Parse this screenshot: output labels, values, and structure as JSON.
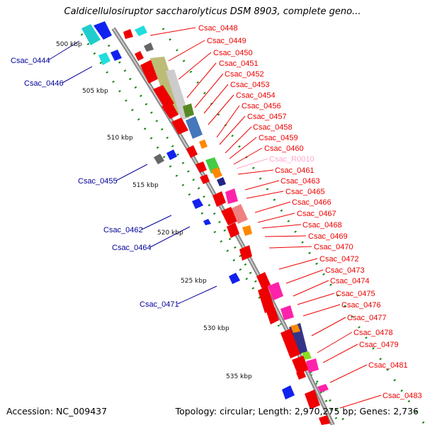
{
  "title": "Caldicellulosiruptor saccharolyticus DSM 8903, complete geno...",
  "footer": {
    "accession_label": "Accession:",
    "accession": "NC_009437",
    "topology_label": "Topology:",
    "topology": "circular",
    "length_label": "Length:",
    "length": "2,970,275 bp",
    "genes_label": "Genes:",
    "genes": "2,736"
  },
  "colors": {
    "forward_label": "#ee0000",
    "reverse_label": "#00009a",
    "rna_label": "#ffaacc",
    "backbone": "#888888",
    "kbp_ticks": "#118811"
  },
  "kbp_ticks": [
    "500 kbp",
    "505 kbp",
    "510 kbp",
    "515 kbp",
    "520 kbp",
    "525 kbp",
    "530 kbp",
    "535 kbp"
  ],
  "forward_labels": [
    "Csac_0448",
    "Csac_0449",
    "Csac_0450",
    "Csac_0451",
    "Csac_0452",
    "Csac_0453",
    "Csac_0454",
    "Csac_0456",
    "Csac_0457",
    "Csac_0458",
    "Csac_0459",
    "Csac_0460",
    "Csac_R0010",
    "Csac_0461",
    "Csac_0463",
    "Csac_0465",
    "Csac_0466",
    "Csac_0467",
    "Csac_0468",
    "Csac_0469",
    "Csac_0470",
    "Csac_0472",
    "Csac_0473",
    "Csac_0474",
    "Csac_0475",
    "Csac_0476",
    "Csac_0477",
    "Csac_0478",
    "Csac_0479",
    "Csac_0481",
    "Csac_0483"
  ],
  "reverse_labels": [
    "Csac_0444",
    "Csac_0446",
    "Csac_0455",
    "Csac_0462",
    "Csac_0464",
    "Csac_0471"
  ]
}
